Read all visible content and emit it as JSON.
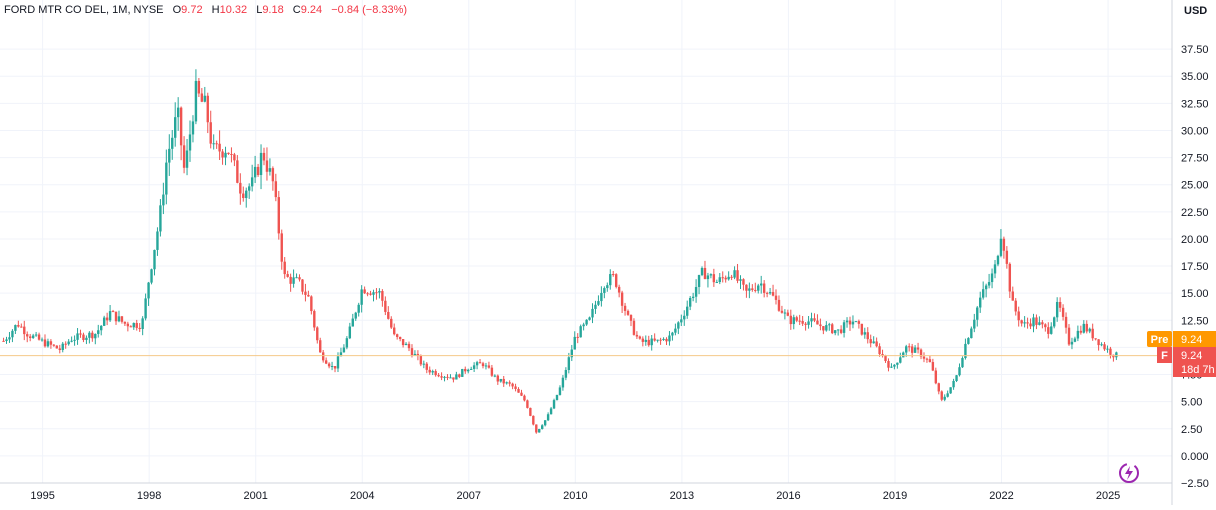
{
  "legend": {
    "symbol": "FORD MTR CO DEL, 1M, NYSE",
    "o_label": "O",
    "o_value": "9.72",
    "h_label": "H",
    "h_value": "10.32",
    "l_label": "L",
    "l_value": "9.18",
    "c_label": "C",
    "c_value": "9.24",
    "change": "−0.84 (−8.33%)"
  },
  "currency": "USD",
  "price_labels": {
    "pre_tag": "Pre",
    "pre_value": "9.24",
    "f_tag": "F",
    "f_value": "9.24",
    "countdown": "18d 7h"
  },
  "colors": {
    "up": "#26a69a",
    "down": "#ef5350",
    "grid": "#f0f3fa",
    "axis_text": "#131722",
    "pre": "#ff9800",
    "last_line": "#f5c98a"
  },
  "chart_data": {
    "type": "candlestick",
    "title": "",
    "xlabel": "",
    "ylabel": "",
    "x_range": [
      1993.8,
      2026.8
    ],
    "ylim": [
      -2.5,
      40.0
    ],
    "y_ticks": [
      "37.50",
      "35.00",
      "32.50",
      "30.00",
      "27.50",
      "25.00",
      "22.50",
      "20.00",
      "17.50",
      "15.00",
      "12.50",
      "10.00",
      "7.50",
      "5.00",
      "2.50",
      "0.000",
      "−2.50"
    ],
    "y_tick_values": [
      37.5,
      35.0,
      32.5,
      30.0,
      27.5,
      25.0,
      22.5,
      20.0,
      17.5,
      15.0,
      12.5,
      10.0,
      7.5,
      5.0,
      2.5,
      0.0,
      -2.5
    ],
    "x_ticks": [
      "1995",
      "1998",
      "2001",
      "2004",
      "2007",
      "2010",
      "2013",
      "2016",
      "2019",
      "2022",
      "2025"
    ],
    "x_tick_values": [
      1995,
      1998,
      2001,
      2004,
      2007,
      2010,
      2013,
      2016,
      2019,
      2022,
      2025
    ],
    "last_price": 9.24,
    "close_path": [
      [
        1993.9,
        10.6
      ],
      [
        1994.3,
        12.2
      ],
      [
        1994.6,
        11.2
      ],
      [
        1995.0,
        10.5
      ],
      [
        1995.5,
        9.8
      ],
      [
        1995.8,
        10.8
      ],
      [
        1996.5,
        11.3
      ],
      [
        1996.9,
        13.2
      ],
      [
        1997.3,
        12.2
      ],
      [
        1997.8,
        12.1
      ],
      [
        1998.0,
        16.5
      ],
      [
        1998.3,
        22.0
      ],
      [
        1998.5,
        27.5
      ],
      [
        1998.8,
        31.5
      ],
      [
        1999.0,
        26.0
      ],
      [
        1999.3,
        33.5
      ],
      [
        1999.6,
        32.0
      ],
      [
        1999.8,
        28.0
      ],
      [
        2000.2,
        28.5
      ],
      [
        2000.6,
        24.5
      ],
      [
        2000.9,
        25.0
      ],
      [
        2001.2,
        28.0
      ],
      [
        2001.5,
        25.0
      ],
      [
        2001.8,
        16.5
      ],
      [
        2002.2,
        16.0
      ],
      [
        2002.5,
        14.5
      ],
      [
        2002.8,
        9.5
      ],
      [
        2003.2,
        8.0
      ],
      [
        2003.6,
        11.0
      ],
      [
        2004.0,
        15.5
      ],
      [
        2004.5,
        15.0
      ],
      [
        2004.9,
        11.0
      ],
      [
        2005.3,
        10.0
      ],
      [
        2005.8,
        8.0
      ],
      [
        2006.2,
        7.5
      ],
      [
        2006.6,
        7.2
      ],
      [
        2007.0,
        8.2
      ],
      [
        2007.4,
        8.5
      ],
      [
        2007.8,
        7.0
      ],
      [
        2008.2,
        6.5
      ],
      [
        2008.6,
        5.0
      ],
      [
        2008.9,
        2.2
      ],
      [
        2009.2,
        3.5
      ],
      [
        2009.6,
        6.5
      ],
      [
        2010.0,
        11.0
      ],
      [
        2010.4,
        12.5
      ],
      [
        2010.8,
        16.0
      ],
      [
        2011.1,
        16.5
      ],
      [
        2011.5,
        12.5
      ],
      [
        2011.8,
        10.5
      ],
      [
        2012.3,
        10.5
      ],
      [
        2012.7,
        11.0
      ],
      [
        2013.1,
        13.5
      ],
      [
        2013.6,
        17.0
      ],
      [
        2014.0,
        16.0
      ],
      [
        2014.4,
        17.0
      ],
      [
        2014.8,
        15.0
      ],
      [
        2015.2,
        16.0
      ],
      [
        2015.6,
        14.5
      ],
      [
        2016.0,
        12.5
      ],
      [
        2016.5,
        12.5
      ],
      [
        2016.9,
        12.0
      ],
      [
        2017.4,
        11.5
      ],
      [
        2017.8,
        12.5
      ],
      [
        2018.2,
        11.0
      ],
      [
        2018.6,
        9.5
      ],
      [
        2018.9,
        8.0
      ],
      [
        2019.3,
        10.0
      ],
      [
        2019.7,
        9.5
      ],
      [
        2020.0,
        8.5
      ],
      [
        2020.3,
        5.0
      ],
      [
        2020.7,
        7.0
      ],
      [
        2021.0,
        10.5
      ],
      [
        2021.4,
        14.5
      ],
      [
        2021.8,
        17.0
      ],
      [
        2022.0,
        21.0
      ],
      [
        2022.3,
        14.0
      ],
      [
        2022.6,
        12.0
      ],
      [
        2022.9,
        12.5
      ],
      [
        2023.3,
        11.5
      ],
      [
        2023.6,
        14.0
      ],
      [
        2023.9,
        10.5
      ],
      [
        2024.3,
        12.0
      ],
      [
        2024.6,
        11.0
      ],
      [
        2024.9,
        10.0
      ],
      [
        2025.2,
        9.24
      ]
    ]
  }
}
